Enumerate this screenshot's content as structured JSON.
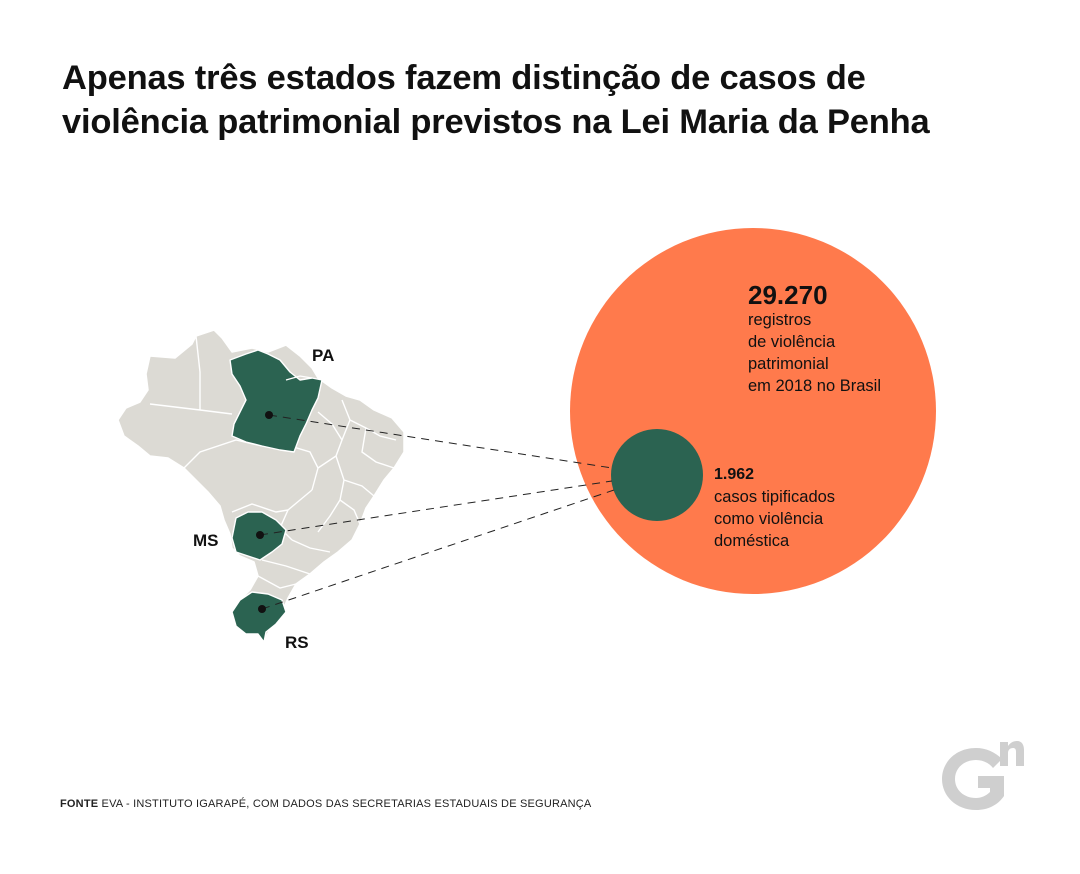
{
  "title": {
    "line1": "Apenas três estados fazem distinção de casos de",
    "line2": "violência patrimonial previstos na Lei Maria da Penha"
  },
  "colors": {
    "total_circle": "#FF7A4C",
    "subset_circle": "#2B6351",
    "map_base": "#DCDAD4",
    "map_highlight": "#2B6351",
    "text": "#111111",
    "logo": "#CFCFCF"
  },
  "chart_data": {
    "type": "bubble",
    "title": "Apenas três estados fazem distinção de casos de violência patrimonial previstos na Lei Maria da Penha",
    "bubbles": [
      {
        "value_label": "29.270",
        "value": 29270,
        "lines": [
          "registros",
          "de violência",
          "patrimonial",
          "em 2018 no Brasil"
        ],
        "color": "#FF7A4C"
      },
      {
        "value_label": "1.962",
        "value": 1962,
        "lines": [
          "casos tipificados",
          "como violência",
          "doméstica"
        ],
        "color": "#2B6351"
      }
    ],
    "highlighted_states": [
      "PA",
      "MS",
      "RS"
    ]
  },
  "map": {
    "labels": {
      "pa": "PA",
      "ms": "MS",
      "rs": "RS"
    }
  },
  "footer": {
    "label": "FONTE",
    "text": " EVA - INSTITUTO IGARAPÉ, COM DADOS DAS SECRETARIAS ESTADUAIS DE SEGURANÇA"
  },
  "logo": {
    "icon": "gn-logo-icon",
    "letters": "G",
    "superscript": "n"
  }
}
